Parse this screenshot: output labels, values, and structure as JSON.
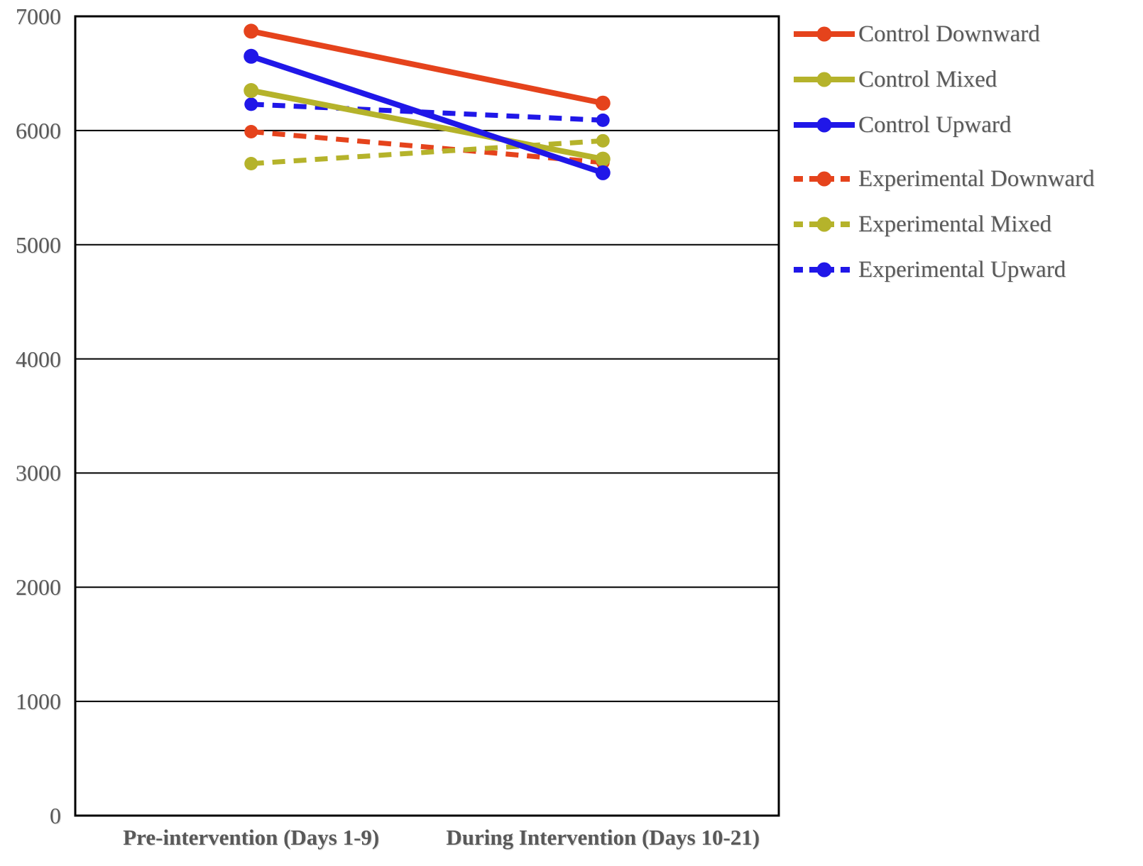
{
  "chart_data": {
    "type": "line",
    "title": "",
    "xlabel": "",
    "ylabel": "",
    "categories": [
      "Pre-intervention (Days 1-9)",
      "During Intervention (Days 10-21)"
    ],
    "series": [
      {
        "name": "Control Downward",
        "group": "Control",
        "line_style": "solid",
        "color": "#E5431C",
        "values": [
          6870,
          6240
        ]
      },
      {
        "name": "Control Mixed",
        "group": "Control",
        "line_style": "solid",
        "color": "#B5B32B",
        "values": [
          6350,
          5750
        ]
      },
      {
        "name": "Control Upward",
        "group": "Control",
        "line_style": "solid",
        "color": "#2017E8",
        "values": [
          6650,
          5630
        ]
      },
      {
        "name": "Experimental Downward",
        "group": "Experimental",
        "line_style": "dashed",
        "color": "#E5431C",
        "values": [
          5990,
          5720
        ]
      },
      {
        "name": "Experimental Mixed",
        "group": "Experimental",
        "line_style": "dashed",
        "color": "#B5B32B",
        "values": [
          5710,
          5910
        ]
      },
      {
        "name": "Experimental Upward",
        "group": "Experimental",
        "line_style": "dashed",
        "color": "#2017E8",
        "values": [
          6230,
          6090
        ]
      }
    ],
    "ylim": [
      0,
      7000
    ],
    "ytick_step": 1000,
    "ytick_labels": [
      "0",
      "1000",
      "2000",
      "3000",
      "4000",
      "5000",
      "6000",
      "7000"
    ],
    "grid": "horizontal",
    "grid_color": "#000000",
    "frame_color": "#000000",
    "axis_text_color": "#595959",
    "legend_position": "right",
    "marker": "circle"
  }
}
